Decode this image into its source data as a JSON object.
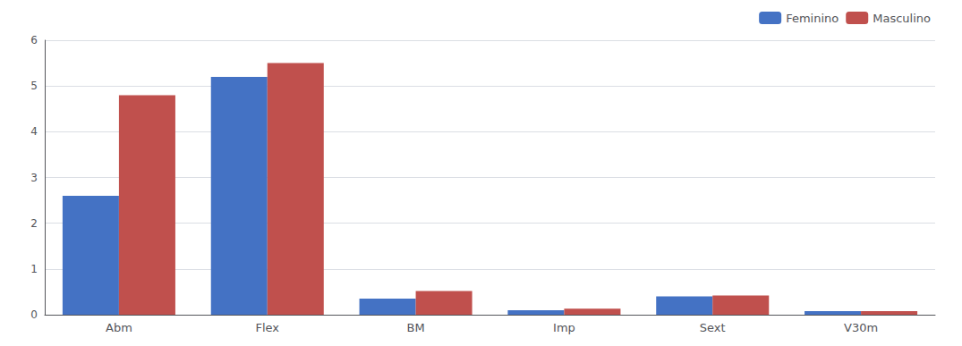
{
  "chart_data": {
    "type": "bar",
    "categories": [
      "Abm",
      "Flex",
      "BM",
      "Imp",
      "Sext",
      "V30m"
    ],
    "series": [
      {
        "name": "Feminino",
        "color": "#4472C4",
        "values": [
          2.6,
          5.2,
          0.35,
          0.1,
          0.4,
          0.08
        ]
      },
      {
        "name": "Masculino",
        "color": "#C0504D",
        "values": [
          4.8,
          5.5,
          0.52,
          0.13,
          0.42,
          0.08
        ]
      }
    ],
    "ylim": [
      0,
      6
    ],
    "yticks": [
      0,
      1,
      2,
      3,
      4,
      5,
      6
    ],
    "grid": true,
    "legend": "upper right"
  }
}
